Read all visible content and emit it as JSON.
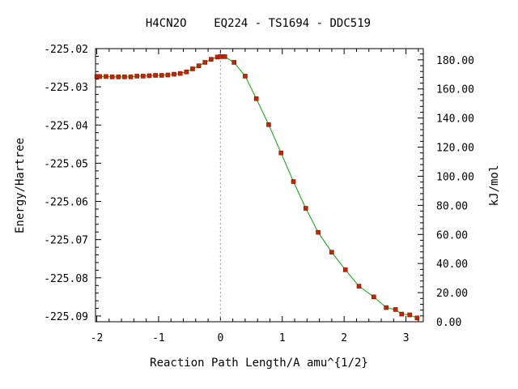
{
  "chart_data": {
    "type": "line",
    "title": "H4CN2O    EQ224 - TS1694 - DDC519",
    "xlabel": "Reaction Path Length/A amu^{1/2}",
    "ylabel": "Energy/Hartree",
    "y2label": "kJ/mol",
    "xlim": [
      -2.02,
      3.28
    ],
    "ylim": [
      -225.0915,
      -225.02
    ],
    "y2lim": [
      0.0,
      187.7
    ],
    "xticks": [
      -2,
      -1,
      0,
      1,
      2,
      3
    ],
    "xtick_labels": [
      "-2",
      "-1",
      "0",
      "1",
      "2",
      "3"
    ],
    "yticks": [
      -225.02,
      -225.03,
      -225.04,
      -225.05,
      -225.06,
      -225.07,
      -225.08,
      -225.09
    ],
    "ytick_labels": [
      "-225.02",
      "-225.03",
      "-225.04",
      "-225.05",
      "-225.06",
      "-225.07",
      "-225.08",
      "-225.09"
    ],
    "y2ticks": [
      180,
      160,
      140,
      120,
      100,
      80,
      60,
      40,
      20,
      0
    ],
    "y2tick_labels": [
      "180.00",
      "160.00",
      "140.00",
      "120.00",
      "100.00",
      "80.00",
      "60.00",
      "40.00",
      "20.00",
      "0.00"
    ],
    "ts_x": 0,
    "line_color": "#00aa00",
    "marker_color": "#cc2200",
    "points": [
      {
        "x": -2.0,
        "y": -225.0273
      },
      {
        "x": -1.98,
        "y": -225.0273
      },
      {
        "x": -1.95,
        "y": -225.0273
      },
      {
        "x": -1.85,
        "y": -225.0273
      },
      {
        "x": -1.75,
        "y": -225.0274
      },
      {
        "x": -1.65,
        "y": -225.0274
      },
      {
        "x": -1.55,
        "y": -225.0274
      },
      {
        "x": -1.45,
        "y": -225.0274
      },
      {
        "x": -1.35,
        "y": -225.0272
      },
      {
        "x": -1.25,
        "y": -225.0272
      },
      {
        "x": -1.15,
        "y": -225.0271
      },
      {
        "x": -1.05,
        "y": -225.027
      },
      {
        "x": -0.95,
        "y": -225.027
      },
      {
        "x": -0.85,
        "y": -225.0269
      },
      {
        "x": -0.75,
        "y": -225.0267
      },
      {
        "x": -0.65,
        "y": -225.0265
      },
      {
        "x": -0.55,
        "y": -225.0261
      },
      {
        "x": -0.45,
        "y": -225.0253
      },
      {
        "x": -0.35,
        "y": -225.0245
      },
      {
        "x": -0.25,
        "y": -225.0236
      },
      {
        "x": -0.15,
        "y": -225.0228
      },
      {
        "x": -0.05,
        "y": -225.0222
      },
      {
        "x": 0.0,
        "y": -225.0221
      },
      {
        "x": 0.07,
        "y": -225.0221
      },
      {
        "x": 0.22,
        "y": -225.0236
      },
      {
        "x": 0.4,
        "y": -225.0272
      },
      {
        "x": 0.58,
        "y": -225.0331
      },
      {
        "x": 0.78,
        "y": -225.0399
      },
      {
        "x": 0.98,
        "y": -225.0473
      },
      {
        "x": 1.18,
        "y": -225.0548
      },
      {
        "x": 1.38,
        "y": -225.0618
      },
      {
        "x": 1.58,
        "y": -225.0681
      },
      {
        "x": 1.8,
        "y": -225.0733
      },
      {
        "x": 2.02,
        "y": -225.0779
      },
      {
        "x": 2.24,
        "y": -225.0822
      },
      {
        "x": 2.48,
        "y": -225.085
      },
      {
        "x": 2.68,
        "y": -225.0878
      },
      {
        "x": 2.83,
        "y": -225.0883
      },
      {
        "x": 2.93,
        "y": -225.0895
      },
      {
        "x": 3.06,
        "y": -225.0897
      },
      {
        "x": 3.18,
        "y": -225.0905
      }
    ]
  }
}
